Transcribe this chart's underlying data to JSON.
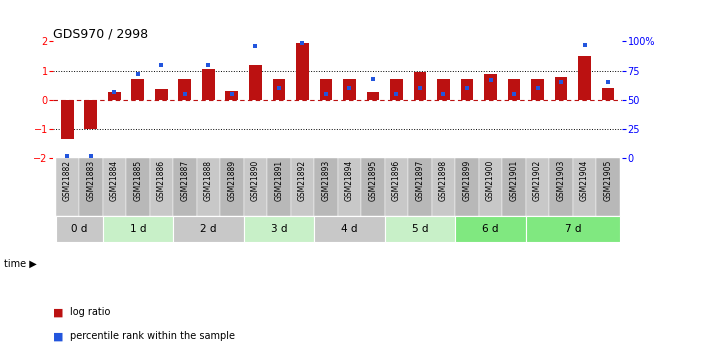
{
  "title": "GDS970 / 2998",
  "samples": [
    "GSM21882",
    "GSM21883",
    "GSM21884",
    "GSM21885",
    "GSM21886",
    "GSM21887",
    "GSM21888",
    "GSM21889",
    "GSM21890",
    "GSM21891",
    "GSM21892",
    "GSM21893",
    "GSM21894",
    "GSM21895",
    "GSM21896",
    "GSM21897",
    "GSM21898",
    "GSM21899",
    "GSM21900",
    "GSM21901",
    "GSM21902",
    "GSM21903",
    "GSM21904",
    "GSM21905"
  ],
  "log_ratio": [
    -1.35,
    -1.0,
    0.28,
    0.72,
    0.38,
    0.72,
    1.05,
    0.3,
    1.18,
    0.72,
    1.95,
    0.72,
    0.72,
    0.28,
    0.72,
    0.95,
    0.72,
    0.72,
    0.9,
    0.72,
    0.72,
    0.78,
    1.5,
    0.42
  ],
  "percentile_rank": [
    2,
    2,
    57,
    72,
    80,
    55,
    80,
    55,
    96,
    60,
    99,
    55,
    60,
    68,
    55,
    60,
    55,
    60,
    67,
    55,
    60,
    65,
    97,
    65
  ],
  "time_groups": [
    {
      "label": "0 d",
      "start": 0,
      "end": 2,
      "color": "#c8c8c8"
    },
    {
      "label": "1 d",
      "start": 2,
      "end": 5,
      "color": "#c8f0c8"
    },
    {
      "label": "2 d",
      "start": 5,
      "end": 8,
      "color": "#c8c8c8"
    },
    {
      "label": "3 d",
      "start": 8,
      "end": 11,
      "color": "#c8f0c8"
    },
    {
      "label": "4 d",
      "start": 11,
      "end": 14,
      "color": "#c8c8c8"
    },
    {
      "label": "5 d",
      "start": 14,
      "end": 17,
      "color": "#c8f0c8"
    },
    {
      "label": "6 d",
      "start": 17,
      "end": 20,
      "color": "#80e880"
    },
    {
      "label": "7 d",
      "start": 20,
      "end": 24,
      "color": "#80e880"
    }
  ],
  "bar_color": "#bb1111",
  "marker_color": "#2255dd",
  "ylim": [
    -2,
    2
  ],
  "yticks": [
    -2,
    -1,
    0,
    1,
    2
  ],
  "pct_yticks": [
    0,
    25,
    50,
    75,
    100
  ],
  "pct_yticklabels": [
    "0",
    "25",
    "50",
    "75",
    "100%"
  ],
  "dotted_lines": [
    -1,
    1
  ],
  "legend_items": [
    {
      "color": "#bb1111",
      "label": "log ratio"
    },
    {
      "color": "#2255dd",
      "label": "percentile rank within the sample"
    }
  ],
  "sample_bg_even": "#c8c8c8",
  "sample_bg_odd": "#b8b8b8"
}
